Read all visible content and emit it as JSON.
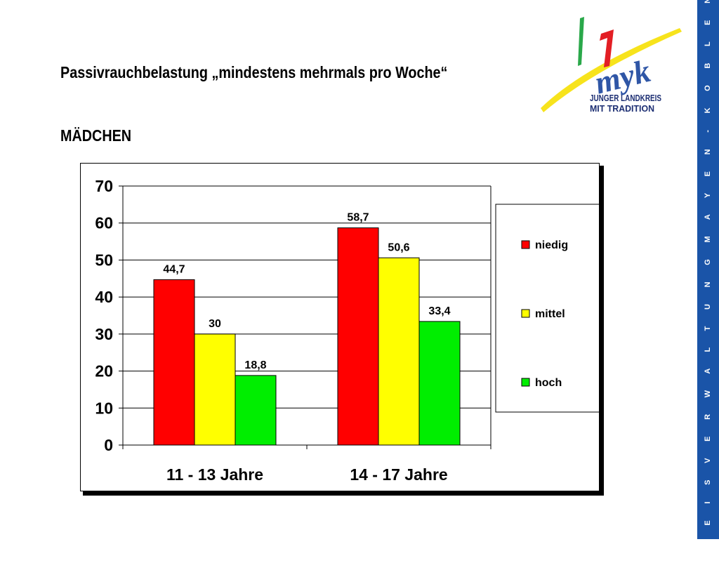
{
  "slide": {
    "title": "Passivrauchbelastung „mindestens mehrmals pro Woche“",
    "subtitle": "MÄDCHEN"
  },
  "logo": {
    "line1": "JUNGER LANDKREIS",
    "line2": "MIT TRADITION",
    "script_text": "myk",
    "colors": {
      "green": "#2aa84a",
      "red": "#e31e24",
      "yellow": "#f7e31c",
      "blue": "#2f56a6"
    }
  },
  "side_band": {
    "text": "K R E I S V E R W A L T U N G   M A Y E N - K O B L E N Z",
    "color": "#1a54a8"
  },
  "chart_data": {
    "type": "bar",
    "categories": [
      "11 - 13 Jahre",
      "14 - 17 Jahre"
    ],
    "series": [
      {
        "name": "niedig",
        "color": "#ff0000",
        "values": [
          44.7,
          58.7
        ],
        "labels": [
          "44,7",
          "58,7"
        ]
      },
      {
        "name": "mittel",
        "color": "#ffff00",
        "values": [
          30,
          50.6
        ],
        "labels": [
          "30",
          "50,6"
        ]
      },
      {
        "name": "hoch",
        "color": "#00ee00",
        "values": [
          18.8,
          33.4
        ],
        "labels": [
          "18,8",
          "33,4"
        ]
      }
    ],
    "ylim": [
      0,
      70
    ],
    "yticks": [
      0,
      10,
      20,
      30,
      40,
      50,
      60,
      70
    ],
    "grid": true,
    "legend_position": "right"
  }
}
